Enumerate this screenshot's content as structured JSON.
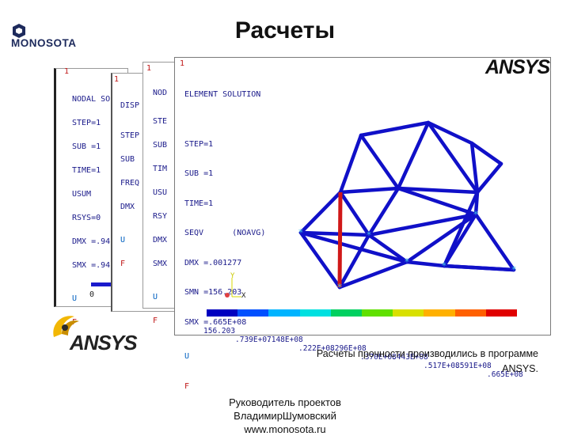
{
  "header": {
    "title": "Расчеты",
    "company_logo_text": "MONOSOTA"
  },
  "back_windows": [
    {
      "window_number": "1",
      "lines": [
        "NODAL SO",
        "STEP=1",
        "SUB =1",
        "TIME=1",
        "USUM",
        "RSYS=0",
        "DMX =.94",
        "SMX =.94"
      ],
      "u_label": "U",
      "f_label": "F",
      "tick_label": "0"
    },
    {
      "window_number": "1",
      "lines": [
        "DISP",
        "STEP",
        "SUB",
        "FREQ",
        "DMX"
      ],
      "u_label": "U",
      "f_label": "F"
    },
    {
      "window_number": "1",
      "lines": [
        "NOD",
        "STE",
        "SUB",
        "TIM",
        "USU",
        "RSY",
        "DMX",
        "SMX"
      ],
      "u_label": "U",
      "f_label": "F"
    }
  ],
  "main_window": {
    "window_number": "1",
    "brand": "ANSYS",
    "lines": [
      "ELEMENT SOLUTION",
      "",
      "STEP=1",
      "SUB =1",
      "TIME=1",
      "SEQV      (NOAVG)",
      "DMX =.001277",
      "SMN =156.203",
      "SMX =.665E+08"
    ],
    "u_label": "U",
    "f_label": "F",
    "axis": {
      "y": "Y",
      "x": "X"
    },
    "legend_top": [
      "156.203",
      ".148E+08",
      ".296E+08",
      ".443E+08",
      ".591E+08"
    ],
    "legend_bottom": [
      ".739E+07",
      ".222E+08",
      ".370E+08",
      ".517E+08",
      ".665E+08"
    ],
    "legend_colors": [
      "#0000c0",
      "#0050ff",
      "#00b4ff",
      "#00e0e0",
      "#00d060",
      "#60e000",
      "#d8e000",
      "#ffb000",
      "#ff6000",
      "#e00000"
    ]
  },
  "ansys_logo_text": "ANSYS",
  "caption": {
    "line1": "Расчеты прочности производились в программе",
    "line2": "ANSYS."
  },
  "footer": {
    "line1": "Руководитель проектов",
    "line2": "ВладимирШумовский",
    "line3": "www.monosota.ru"
  }
}
